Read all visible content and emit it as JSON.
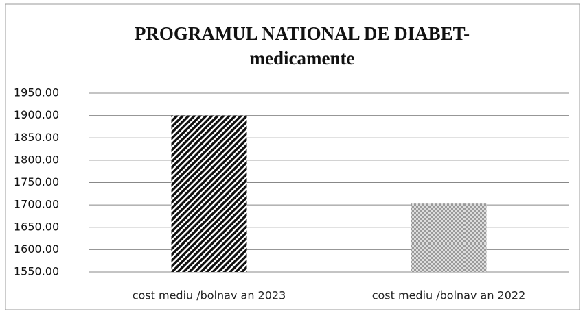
{
  "chart_data": {
    "type": "bar",
    "title": [
      "PROGRAMUL NATIONAL DE DIABET-",
      "medicamente"
    ],
    "categories": [
      "cost mediu /bolnav an 2023",
      "cost mediu /bolnav an 2022"
    ],
    "values": [
      1900,
      1703
    ],
    "colors": [
      "#111111",
      "#9a9a9a"
    ],
    "ylim": [
      1550,
      1950
    ],
    "yticks": [
      {
        "value": 1550,
        "label": "1550.00"
      },
      {
        "value": 1600,
        "label": "1600.00"
      },
      {
        "value": 1650,
        "label": "1650.00"
      },
      {
        "value": 1700,
        "label": "1700.00"
      },
      {
        "value": 1750,
        "label": "1750.00"
      },
      {
        "value": 1800,
        "label": "1800.00"
      },
      {
        "value": 1850,
        "label": "1850.00"
      },
      {
        "value": 1900,
        "label": "1900.00"
      },
      {
        "value": 1950,
        "label": "1950.00"
      }
    ],
    "grid": true
  }
}
